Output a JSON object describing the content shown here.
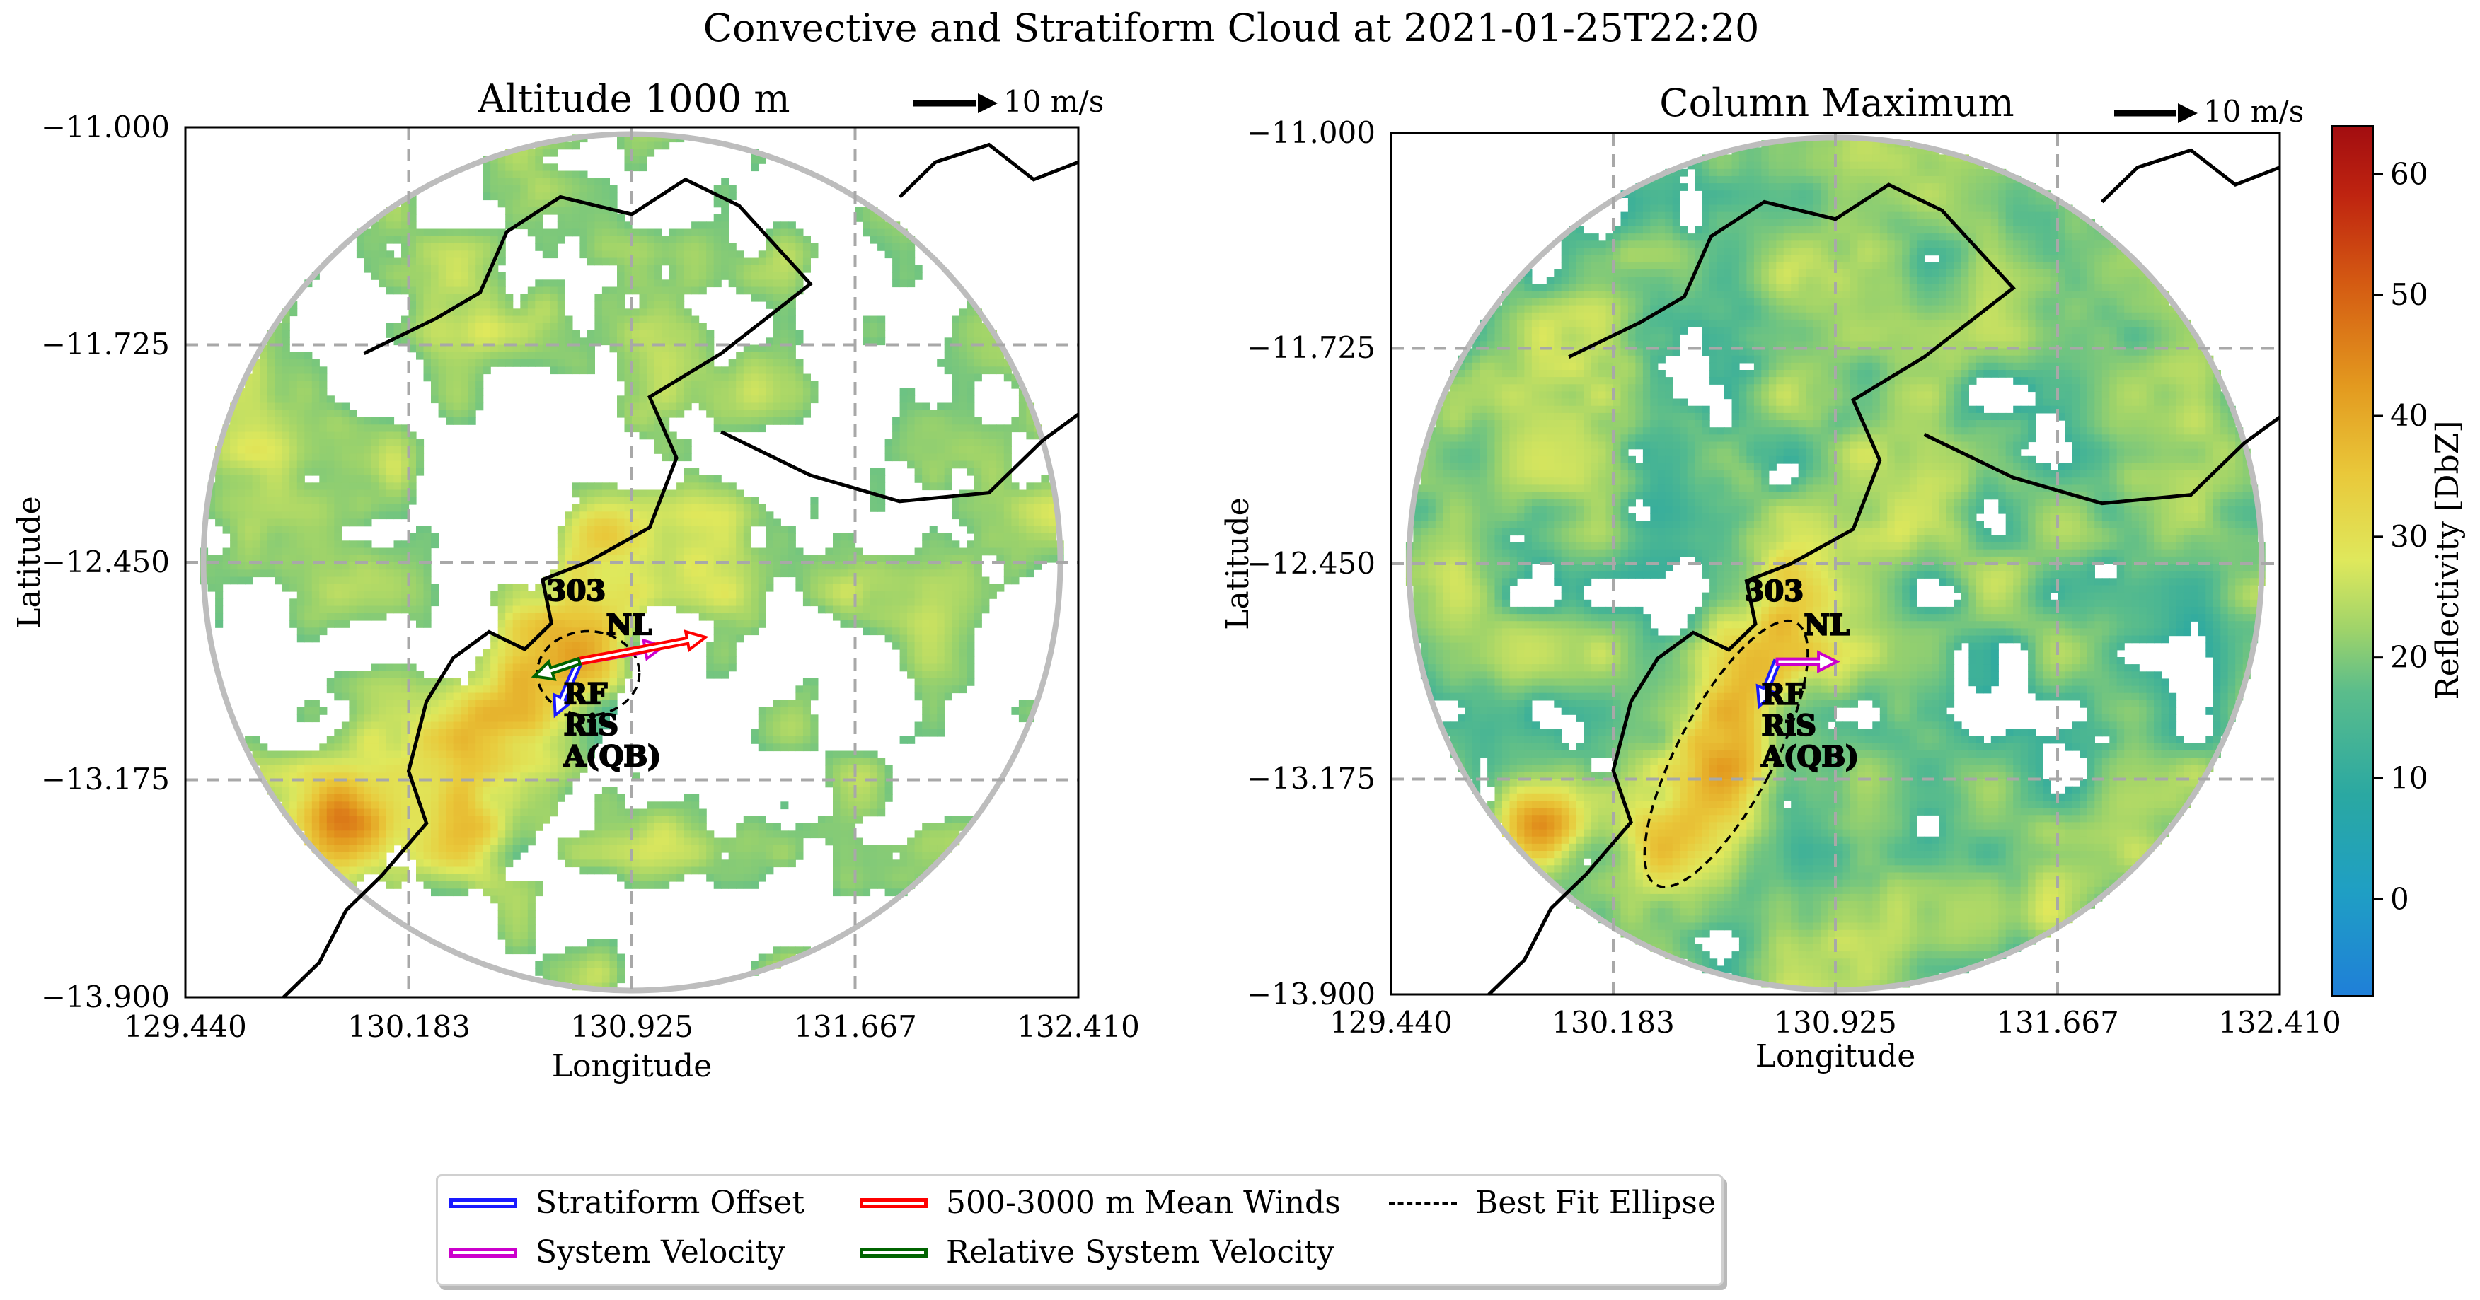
{
  "figure": {
    "title": "Convective and Stratiform Cloud at 2021-01-25T22:20"
  },
  "panels": [
    {
      "title": "Altitude 1000 m",
      "scale_label": "10 m/s",
      "xlabel": "Longitude",
      "ylabel": "Latitude",
      "xticks": [
        "129.440",
        "130.183",
        "130.925",
        "131.667",
        "132.410"
      ],
      "yticks": [
        "−11.000",
        "−11.725",
        "−12.450",
        "−13.175",
        "−13.900"
      ],
      "labels": {
        "site": "303",
        "nl": "NL",
        "rf": "RF",
        "ris": "RiS",
        "aqb": "A(QB)"
      }
    },
    {
      "title": "Column Maximum",
      "scale_label": "10 m/s",
      "xlabel": "Longitude",
      "ylabel": "Latitude",
      "xticks": [
        "129.440",
        "130.183",
        "130.925",
        "131.667",
        "132.410"
      ],
      "yticks": [
        "−11.000",
        "−11.725",
        "−12.450",
        "−13.175",
        "−13.900"
      ],
      "labels": {
        "site": "303",
        "nl": "NL",
        "rf": "RF",
        "ris": "RiS",
        "aqb": "A(QB)"
      }
    }
  ],
  "colorbar": {
    "label": "Reflectivity [DbZ]",
    "ticks": [
      "0",
      "10",
      "20",
      "30",
      "40",
      "50",
      "60"
    ],
    "range": [
      -8,
      64
    ],
    "colormap": "HomeyerRainbow"
  },
  "legend": {
    "items": [
      {
        "label": "Stratiform Offset",
        "color": "#1a1aff",
        "style": "box"
      },
      {
        "label": "System Velocity",
        "color": "#cc00cc",
        "style": "box"
      },
      {
        "label": "500-3000 m Mean Winds",
        "color": "#ff0000",
        "style": "box"
      },
      {
        "label": "Relative System Velocity",
        "color": "#006400",
        "style": "box"
      },
      {
        "label": "Best Fit Ellipse",
        "color": "#000000",
        "style": "dashed"
      }
    ]
  },
  "chart_data": {
    "type": "heatmap",
    "x_range": [
      129.44,
      132.41
    ],
    "y_range": [
      -13.9,
      -11.0
    ],
    "radar_center": [
      130.925,
      -12.45
    ],
    "radar_range_deg": 1.425,
    "grid": true,
    "vector_scale_ms": 10,
    "panels": [
      {
        "name": "Altitude 1000 m",
        "system_centre": [
          130.75,
          -12.78
        ],
        "vectors": {
          "stratiform_offset": [
            -0.08,
            -0.18
          ],
          "system_velocity": [
            0.28,
            0.05
          ],
          "mean_winds_500_3000m": [
            0.42,
            0.08
          ],
          "relative_system_velocity": [
            -0.15,
            -0.05
          ]
        },
        "ellipse": {
          "center": [
            130.78,
            -12.82
          ],
          "rx_deg": 0.17,
          "ry_deg": 0.14,
          "angle_deg": 0
        }
      },
      {
        "name": "Column Maximum",
        "system_centre": [
          130.73,
          -12.78
        ],
        "vectors": {
          "stratiform_offset": [
            -0.06,
            -0.15
          ],
          "system_velocity": [
            0.2,
            0.0
          ]
        },
        "ellipse": {
          "center": [
            130.56,
            -13.09
          ],
          "rx_deg": 0.16,
          "ry_deg": 0.5,
          "angle_deg": 28
        }
      }
    ]
  }
}
